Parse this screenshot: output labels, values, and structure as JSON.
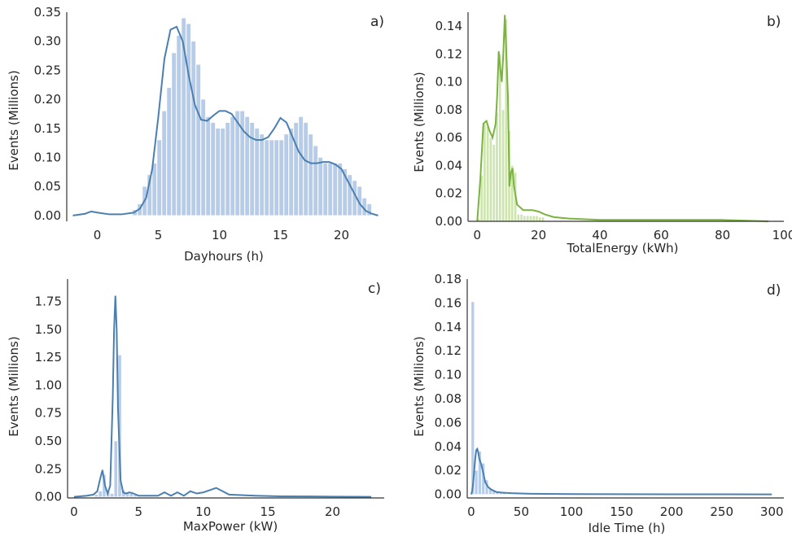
{
  "chart_data": [
    {
      "id": "a",
      "type": "histogram",
      "panel_label": "a)",
      "xlabel": "Dayhours (h)",
      "ylabel": "Events  (Millions)",
      "xlim": [
        -2.5,
        23.5
      ],
      "ylim": [
        -0.01,
        0.35
      ],
      "xticks": [
        0,
        5,
        10,
        15,
        20
      ],
      "yticks": [
        0.0,
        0.05,
        0.1,
        0.15,
        0.2,
        0.25,
        0.3,
        0.35
      ],
      "tick_decimals": 2,
      "bar_color": "#aec7e8",
      "line_color": "#4a7fb0",
      "bins": {
        "start": 2.5,
        "width": 0.4,
        "values": [
          0.0,
          0.01,
          0.02,
          0.05,
          0.07,
          0.09,
          0.13,
          0.18,
          0.22,
          0.28,
          0.31,
          0.34,
          0.33,
          0.3,
          0.26,
          0.2,
          0.17,
          0.16,
          0.15,
          0.15,
          0.16,
          0.17,
          0.18,
          0.18,
          0.17,
          0.16,
          0.15,
          0.14,
          0.13,
          0.13,
          0.13,
          0.13,
          0.14,
          0.15,
          0.16,
          0.17,
          0.16,
          0.14,
          0.12,
          0.1,
          0.09,
          0.09,
          0.09,
          0.09,
          0.08,
          0.07,
          0.06,
          0.05,
          0.03,
          0.02
        ]
      },
      "kde": {
        "x": [
          -2,
          -1,
          -0.5,
          0,
          1,
          2,
          3,
          3.5,
          4,
          4.5,
          5,
          5.5,
          6,
          6.5,
          7,
          7.5,
          8,
          8.5,
          9,
          9.5,
          10,
          10.5,
          11,
          11.5,
          12,
          12.5,
          13,
          13.5,
          14,
          14.5,
          15,
          15.5,
          16,
          16.5,
          17,
          17.5,
          18,
          18.5,
          19,
          19.5,
          20,
          20.5,
          21,
          21.5,
          22,
          22.5,
          23
        ],
        "y": [
          0.0,
          0.003,
          0.007,
          0.005,
          0.002,
          0.002,
          0.005,
          0.012,
          0.03,
          0.08,
          0.17,
          0.27,
          0.32,
          0.325,
          0.3,
          0.24,
          0.19,
          0.165,
          0.163,
          0.172,
          0.18,
          0.18,
          0.175,
          0.16,
          0.145,
          0.135,
          0.13,
          0.13,
          0.135,
          0.15,
          0.168,
          0.16,
          0.135,
          0.11,
          0.095,
          0.09,
          0.09,
          0.092,
          0.092,
          0.088,
          0.08,
          0.06,
          0.04,
          0.02,
          0.008,
          0.003,
          0.0
        ]
      }
    },
    {
      "id": "b",
      "type": "histogram",
      "panel_label": "b)",
      "xlabel": "TotalEnergy (kWh)",
      "ylabel": "Events  (Millions)",
      "xlim": [
        -3,
        100
      ],
      "ylim": [
        -0.0,
        0.15
      ],
      "xticks": [
        0,
        20,
        40,
        60,
        80,
        100
      ],
      "yticks": [
        0.0,
        0.02,
        0.04,
        0.06,
        0.08,
        0.1,
        0.12,
        0.14
      ],
      "tick_decimals": 2,
      "bar_color": "#c9e3a8",
      "line_color": "#7ab33e",
      "bins": {
        "start": 0,
        "width": 1,
        "values": [
          0.002,
          0.033,
          0.07,
          0.068,
          0.06,
          0.055,
          0.078,
          0.12,
          0.08,
          0.145,
          0.065,
          0.04,
          0.035,
          0.005,
          0.005,
          0.004,
          0.004,
          0.004,
          0.004,
          0.004,
          0.003,
          0.003
        ]
      },
      "kde": {
        "x": [
          0,
          1,
          2,
          3,
          4,
          5,
          6,
          6.5,
          7,
          7.5,
          8,
          8.5,
          9,
          9.5,
          10,
          10.5,
          11,
          11.5,
          12,
          13,
          15,
          18,
          20,
          22,
          25,
          30,
          40,
          60,
          80,
          95
        ],
        "y": [
          0.0,
          0.03,
          0.07,
          0.072,
          0.065,
          0.06,
          0.07,
          0.09,
          0.122,
          0.11,
          0.1,
          0.12,
          0.148,
          0.12,
          0.09,
          0.025,
          0.035,
          0.038,
          0.025,
          0.012,
          0.008,
          0.008,
          0.007,
          0.005,
          0.003,
          0.002,
          0.001,
          0.001,
          0.001,
          0.0
        ]
      }
    },
    {
      "id": "c",
      "type": "histogram",
      "panel_label": "c)",
      "xlabel": "MaxPower (kW)",
      "ylabel": "Events  (Millions)",
      "xlim": [
        -0.5,
        24
      ],
      "ylim": [
        -0.01,
        1.95
      ],
      "xticks": [
        0,
        5,
        10,
        15,
        20
      ],
      "yticks": [
        0.0,
        0.25,
        0.5,
        0.75,
        1.0,
        1.25,
        1.5,
        1.75
      ],
      "tick_decimals": 2,
      "bar_color": "#aec7e8",
      "line_color": "#4a7fb0",
      "bins": {
        "start": 1.6,
        "width": 0.3,
        "values": [
          0.02,
          0.05,
          0.2,
          0.05,
          0.03,
          0.5,
          1.27,
          0.06,
          0.04,
          0.03,
          0.02
        ]
      },
      "kde": {
        "x": [
          0,
          1,
          1.5,
          1.8,
          2.0,
          2.2,
          2.4,
          2.6,
          2.8,
          3.0,
          3.1,
          3.2,
          3.3,
          3.4,
          3.6,
          3.8,
          4.0,
          4.3,
          4.6,
          5,
          6,
          6.5,
          7,
          7.5,
          8,
          8.5,
          9,
          9.5,
          10,
          10.5,
          11,
          11.5,
          12,
          14,
          16,
          20,
          23
        ],
        "y": [
          0.0,
          0.01,
          0.02,
          0.05,
          0.15,
          0.24,
          0.1,
          0.03,
          0.1,
          0.9,
          1.5,
          1.8,
          1.5,
          0.8,
          0.15,
          0.04,
          0.03,
          0.04,
          0.03,
          0.01,
          0.01,
          0.01,
          0.04,
          0.01,
          0.04,
          0.01,
          0.05,
          0.03,
          0.04,
          0.06,
          0.08,
          0.05,
          0.02,
          0.01,
          0.005,
          0.002,
          0.0
        ]
      }
    },
    {
      "id": "d",
      "type": "histogram",
      "panel_label": "d)",
      "xlabel": "Idle Time (h)",
      "ylabel": "Events  (Millions)",
      "xlim": [
        -4,
        312
      ],
      "ylim": [
        -0.003,
        0.18
      ],
      "xticks": [
        0,
        50,
        100,
        150,
        200,
        250,
        300
      ],
      "yticks": [
        0.0,
        0.02,
        0.04,
        0.06,
        0.08,
        0.1,
        0.12,
        0.14,
        0.16,
        0.18
      ],
      "tick_decimals": 2,
      "bar_color": "#aec7e8",
      "line_color": "#4a7fb0",
      "bins": {
        "start": 0,
        "width": 3.5,
        "values": [
          0.161,
          0.02,
          0.036,
          0.026,
          0.012,
          0.005,
          0.003,
          0.002,
          0.001,
          0.001
        ]
      },
      "kde": {
        "x": [
          0,
          1,
          2,
          3,
          4,
          5,
          6,
          7,
          8,
          10,
          12,
          14,
          17,
          20,
          25,
          30,
          40,
          60,
          100,
          200,
          300
        ],
        "y": [
          0.0,
          0.003,
          0.01,
          0.02,
          0.03,
          0.037,
          0.038,
          0.035,
          0.03,
          0.025,
          0.018,
          0.01,
          0.006,
          0.004,
          0.002,
          0.0015,
          0.001,
          0.0005,
          0.0002,
          0.0001,
          0.0
        ]
      }
    }
  ]
}
